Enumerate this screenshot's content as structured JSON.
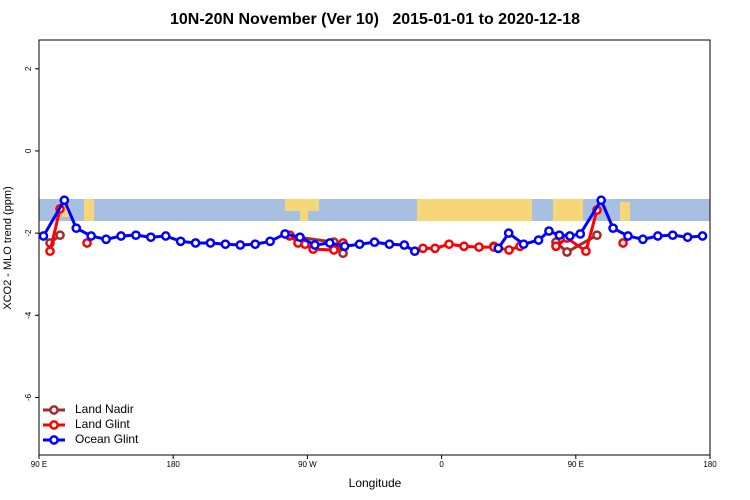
{
  "chart_data": {
    "type": "line",
    "title": "10N-20N November (Ver 10)   2015-01-01 to 2020-12-18",
    "x_label": "Longitude",
    "y_label": "XCO2 - MLO trend (ppm)",
    "xlim": [
      90,
      540
    ],
    "ylim": [
      -7.4,
      2.7
    ],
    "xticks": [
      {
        "value": 90,
        "label": "90 E"
      },
      {
        "value": 180,
        "label": "180"
      },
      {
        "value": 270,
        "label": "90 W"
      },
      {
        "value": 360,
        "label": "0"
      },
      {
        "value": 450,
        "label": "90 E"
      },
      {
        "value": 540,
        "label": "180"
      }
    ],
    "yticks": [
      2,
      0,
      -2,
      -4,
      -6
    ],
    "legend": "bottom-left",
    "series": [
      {
        "name": "Land Nadir",
        "color": "#a52a2a",
        "x": [
          97.4,
          104.1,
          null,
          258,
          287.8,
          293.9,
          null,
          395,
          null,
          436.7,
          444.1,
          464.2
        ],
        "values": [
          -2.24,
          -2.05,
          null,
          -2.07,
          -2.22,
          -2.49,
          null,
          -2.32,
          null,
          -2.22,
          -2.46,
          -2.05
        ]
      },
      {
        "name": "Land Glint",
        "color": "#ff0000",
        "x": [
          97.4,
          104.1,
          null,
          122.2,
          null,
          258.3,
          263.7,
          268.4,
          273.8,
          287.8,
          293.9,
          null,
          347.5,
          355.6,
          365,
          375,
          385.1,
          395.1,
          405.2,
          412.6,
          null,
          436.7,
          444.1,
          456.8,
          464.2,
          null,
          481.7
        ],
        "values": [
          -2.44,
          -1.41,
          null,
          -2.24,
          null,
          -2.05,
          -2.24,
          -2.27,
          -2.39,
          -2.41,
          -2.24,
          null,
          -2.37,
          -2.37,
          -2.27,
          -2.32,
          -2.34,
          -2.34,
          -2.41,
          -2.32,
          null,
          -2.32,
          -2.12,
          -2.44,
          -1.44,
          null,
          -2.24
        ]
      },
      {
        "name": "Ocean Glint",
        "color": "#0000ff",
        "x": [
          93,
          107,
          115,
          125,
          135,
          145,
          155,
          165,
          175,
          185,
          195,
          205,
          215,
          225,
          235,
          245,
          255,
          265,
          275,
          285,
          295,
          305,
          315,
          325,
          335,
          342,
          null,
          398,
          405,
          415,
          425,
          432,
          439,
          446,
          453,
          467,
          475,
          485,
          495,
          505,
          515,
          525,
          535
        ],
        "values": [
          -2.07,
          -1.2,
          -1.88,
          -2.07,
          -2.15,
          -2.07,
          -2.05,
          -2.1,
          -2.07,
          -2.2,
          -2.24,
          -2.24,
          -2.27,
          -2.29,
          -2.27,
          -2.2,
          -2.02,
          -2.1,
          -2.29,
          -2.24,
          -2.32,
          -2.27,
          -2.22,
          -2.27,
          -2.29,
          -2.44,
          null,
          -2.37,
          -2.0,
          -2.27,
          -2.17,
          -1.95,
          -2.05,
          -2.07,
          -2.02,
          -1.2,
          -1.88,
          -2.07,
          -2.15,
          -2.07,
          -2.05,
          -2.1,
          -2.07
        ]
      }
    ]
  }
}
